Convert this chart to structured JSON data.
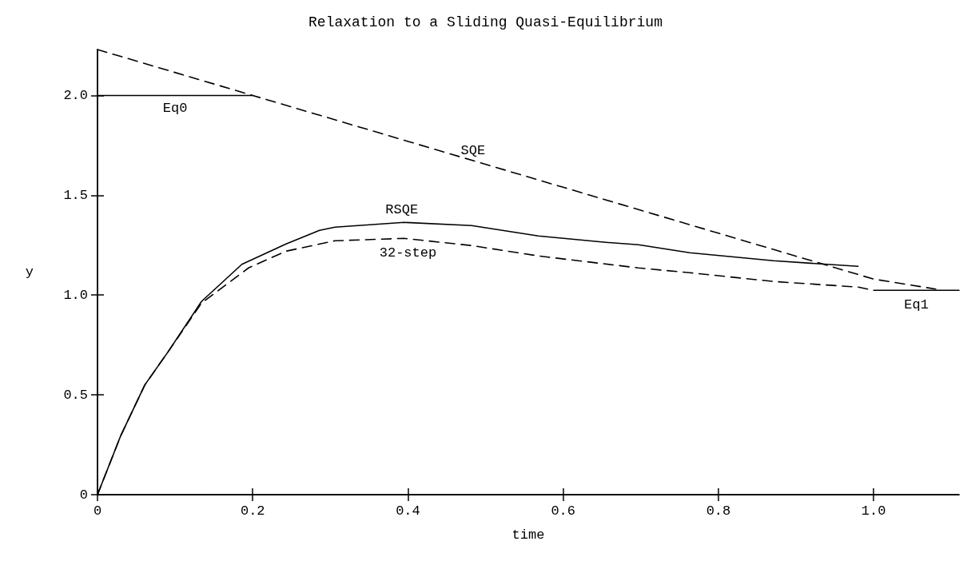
{
  "chart_data": {
    "type": "line",
    "title": "Relaxation to a Sliding Quasi-Equilibrium",
    "xlabel": "time",
    "ylabel": "y",
    "xlim": [
      0,
      1.11
    ],
    "ylim": [
      0,
      2.23
    ],
    "xticks": [
      0,
      0.2,
      0.4,
      0.6,
      0.8,
      {
        "value": 1,
        "label": "1.0"
      }
    ],
    "yticks": [
      0,
      0.5,
      {
        "value": 1,
        "label": "1.0"
      },
      1.5,
      {
        "value": 2,
        "label": "2.0"
      }
    ],
    "grid": false,
    "legend": false,
    "marker": "none",
    "series": [
      {
        "name": "Eq0",
        "color": "#000000",
        "line_style": "solid",
        "x": [
          0,
          0.2
        ],
        "values": [
          2.0,
          2.0
        ]
      },
      {
        "name": "SQE",
        "color": "#000000",
        "line_style": "dashed",
        "x": [
          0,
          0.2,
          0.4,
          0.6,
          0.8,
          1.0,
          1.08
        ],
        "values": [
          2.23,
          2.0,
          1.77,
          1.54,
          1.31,
          1.08,
          1.03
        ]
      },
      {
        "name": "RSQE",
        "color": "#000000",
        "line_style": "solid",
        "x": [
          0,
          0.03,
          0.061,
          0.091,
          0.134,
          0.186,
          0.243,
          0.286,
          0.306,
          0.395,
          0.482,
          0.568,
          0.655,
          0.697,
          0.763,
          0.871,
          0.98
        ],
        "values": [
          0,
          0.296,
          0.55,
          0.716,
          0.968,
          1.154,
          1.256,
          1.324,
          1.34,
          1.364,
          1.348,
          1.296,
          1.264,
          1.252,
          1.212,
          1.172,
          1.144
        ]
      },
      {
        "name": "32-step",
        "color": "#000000",
        "line_style": "dashed",
        "x": [
          0,
          0.03,
          0.061,
          0.091,
          0.134,
          0.195,
          0.243,
          0.306,
          0.395,
          0.482,
          0.568,
          0.697,
          0.763,
          0.871,
          0.98,
          1.0
        ],
        "values": [
          0,
          0.296,
          0.55,
          0.716,
          0.96,
          1.137,
          1.22,
          1.272,
          1.284,
          1.248,
          1.196,
          1.136,
          1.112,
          1.068,
          1.04,
          1.024
        ]
      },
      {
        "name": "Eq1",
        "color": "#000000",
        "line_style": "solid",
        "x": [
          1.0,
          1.11
        ],
        "values": [
          1.024,
          1.024
        ]
      }
    ]
  }
}
